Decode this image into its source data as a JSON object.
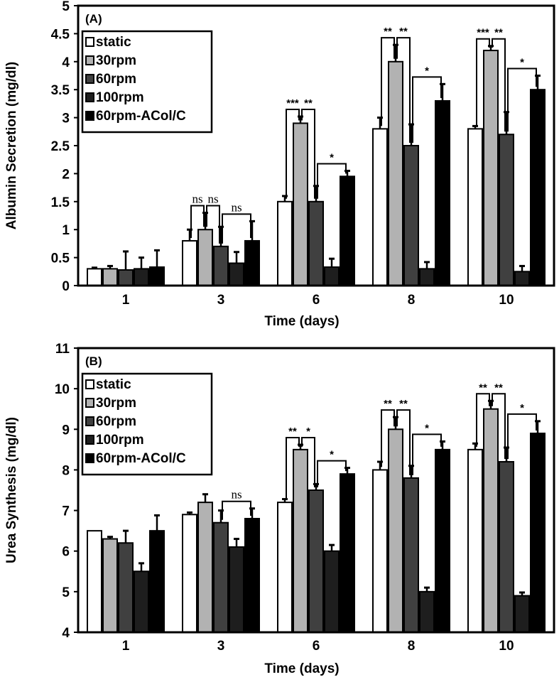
{
  "chart_data": [
    {
      "type": "bar",
      "panel_label": "(A)",
      "xlabel": "Time (days)",
      "ylabel": "Albumin  Secretion (mg/dl)",
      "ylim": [
        0,
        5
      ],
      "yticks": [
        "0",
        "0.5",
        "1",
        "1.5",
        "2",
        "2.5",
        "3",
        "3.5",
        "4",
        "4.5",
        "5"
      ],
      "categories": [
        "1",
        "3",
        "6",
        "8",
        "10"
      ],
      "legend_position": "top-left",
      "series": [
        {
          "name": "static",
          "color": "#ffffff",
          "values": [
            0.3,
            0.8,
            1.5,
            2.8,
            2.8
          ],
          "errors": [
            0.02,
            0.2,
            0.1,
            0.2,
            0.05
          ]
        },
        {
          "name": "30rpm",
          "color": "#b2b2b2",
          "values": [
            0.3,
            1.0,
            2.9,
            4.0,
            4.2
          ],
          "errors": [
            0.05,
            0.3,
            0.12,
            0.3,
            0.08
          ]
        },
        {
          "name": "60rpm",
          "color": "#404040",
          "values": [
            0.28,
            0.7,
            1.5,
            2.5,
            2.7
          ],
          "errors": [
            0.33,
            0.35,
            0.28,
            0.38,
            0.4
          ]
        },
        {
          "name": "100rpm",
          "color": "#1e1e1e",
          "values": [
            0.3,
            0.4,
            0.33,
            0.3,
            0.25
          ],
          "errors": [
            0.2,
            0.2,
            0.15,
            0.12,
            0.1
          ]
        },
        {
          "name": "60rpm-ACol/C",
          "color": "#000000",
          "values": [
            0.33,
            0.8,
            1.95,
            3.3,
            3.5
          ],
          "errors": [
            0.3,
            0.35,
            0.1,
            0.3,
            0.25
          ]
        }
      ],
      "annotations": [
        {
          "group": 1,
          "from": 0,
          "to": 1,
          "label": "ns"
        },
        {
          "group": 1,
          "from": 1,
          "to": 2,
          "label": "ns"
        },
        {
          "group": 1,
          "from": 2,
          "to": 4,
          "label": "ns"
        },
        {
          "group": 2,
          "from": 0,
          "to": 1,
          "label": "***"
        },
        {
          "group": 2,
          "from": 1,
          "to": 2,
          "label": "**"
        },
        {
          "group": 2,
          "from": 2,
          "to": 4,
          "label": "*"
        },
        {
          "group": 3,
          "from": 0,
          "to": 1,
          "label": "**"
        },
        {
          "group": 3,
          "from": 1,
          "to": 2,
          "label": "**"
        },
        {
          "group": 3,
          "from": 2,
          "to": 4,
          "label": "*"
        },
        {
          "group": 4,
          "from": 0,
          "to": 1,
          "label": "***"
        },
        {
          "group": 4,
          "from": 1,
          "to": 2,
          "label": "**"
        },
        {
          "group": 4,
          "from": 2,
          "to": 4,
          "label": "*"
        }
      ]
    },
    {
      "type": "bar",
      "panel_label": "(B)",
      "xlabel": "Time (days)",
      "ylabel": "Urea  Synthesis (mg/dl)",
      "ylim": [
        4,
        11
      ],
      "yticks": [
        "4",
        "5",
        "6",
        "7",
        "8",
        "9",
        "10",
        "11"
      ],
      "categories": [
        "1",
        "3",
        "6",
        "8",
        "10"
      ],
      "legend_position": "top-left",
      "series": [
        {
          "name": "static",
          "color": "#ffffff",
          "values": [
            6.5,
            6.9,
            7.2,
            8.0,
            8.5
          ],
          "errors": [
            0.0,
            0.05,
            0.08,
            0.2,
            0.15
          ]
        },
        {
          "name": "30rpm",
          "color": "#b2b2b2",
          "values": [
            6.3,
            7.2,
            8.5,
            9.0,
            9.5
          ],
          "errors": [
            0.05,
            0.2,
            0.12,
            0.3,
            0.2
          ]
        },
        {
          "name": "60rpm",
          "color": "#404040",
          "values": [
            6.2,
            6.7,
            7.5,
            7.8,
            8.2
          ],
          "errors": [
            0.3,
            0.3,
            0.15,
            0.3,
            0.35
          ]
        },
        {
          "name": "100rpm",
          "color": "#1e1e1e",
          "values": [
            5.5,
            6.1,
            6.0,
            5.0,
            4.9
          ],
          "errors": [
            0.2,
            0.2,
            0.15,
            0.1,
            0.08
          ]
        },
        {
          "name": "60rpm-ACol/C",
          "color": "#000000",
          "values": [
            6.5,
            6.8,
            7.9,
            8.5,
            8.9
          ],
          "errors": [
            0.38,
            0.25,
            0.15,
            0.2,
            0.3
          ]
        }
      ],
      "annotations": [
        {
          "group": 1,
          "from": 2,
          "to": 4,
          "label": "ns"
        },
        {
          "group": 2,
          "from": 0,
          "to": 1,
          "label": "**"
        },
        {
          "group": 2,
          "from": 1,
          "to": 2,
          "label": "*"
        },
        {
          "group": 2,
          "from": 2,
          "to": 4,
          "label": "*"
        },
        {
          "group": 3,
          "from": 0,
          "to": 1,
          "label": "**"
        },
        {
          "group": 3,
          "from": 1,
          "to": 2,
          "label": "**"
        },
        {
          "group": 3,
          "from": 2,
          "to": 4,
          "label": "*"
        },
        {
          "group": 4,
          "from": 0,
          "to": 1,
          "label": "**"
        },
        {
          "group": 4,
          "from": 1,
          "to": 2,
          "label": "**"
        },
        {
          "group": 4,
          "from": 2,
          "to": 4,
          "label": "*"
        }
      ]
    }
  ]
}
